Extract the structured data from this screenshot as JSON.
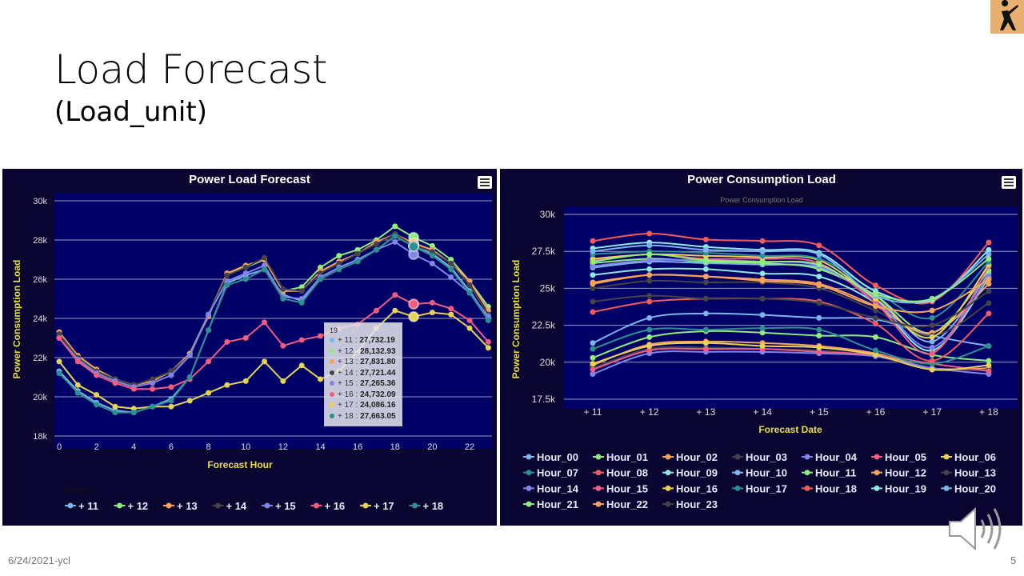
{
  "slide": {
    "title": "Load Forecast",
    "subtitle": "(Load_unit)",
    "footer_date": "6/24/2021-ycl",
    "page_number": "5"
  },
  "colors": {
    "panel_bg": "#0a0530",
    "plot_bg": "#000066",
    "axis_label": "#e8e03a",
    "grid": "#9a9ac0"
  },
  "icons": {
    "menu": "hamburger-menu-icon",
    "speaker": "speaker-audio-icon",
    "logo": "silhouette-logo"
  },
  "chart_data": [
    {
      "type": "line",
      "title": "Power Load Forecast",
      "xlabel": "Forecast Hour",
      "ylabel": "Power Consumption Load",
      "legend_title": "January",
      "legend_position": "bottom",
      "grid": true,
      "x": [
        0,
        1,
        2,
        3,
        4,
        5,
        6,
        7,
        8,
        9,
        10,
        11,
        12,
        13,
        14,
        15,
        16,
        17,
        18,
        19,
        20,
        21,
        22,
        23
      ],
      "x_ticks": [
        "0",
        "2",
        "4",
        "6",
        "8",
        "10",
        "12",
        "14",
        "16",
        "18",
        "20",
        "22"
      ],
      "ylim": [
        18000,
        30000
      ],
      "y_ticks": [
        "18k",
        "20k",
        "22k",
        "24k",
        "26k",
        "28k",
        "30k"
      ],
      "series": [
        {
          "name": "+ 11",
          "color": "#7cb5ec",
          "values": [
            21.3,
            20.3,
            19.7,
            19.3,
            19.2,
            19.5,
            19.9,
            21.0,
            23.4,
            25.8,
            26.2,
            26.5,
            25.2,
            24.9,
            26.1,
            26.6,
            27.0,
            27.5,
            28.2,
            27.732,
            27.3,
            26.6,
            25.4,
            24.0
          ]
        },
        {
          "name": "+ 12",
          "color": "#90ed7d",
          "values": [
            23.2,
            22.0,
            21.3,
            20.9,
            20.6,
            20.8,
            21.3,
            22.2,
            24.2,
            26.3,
            26.6,
            27.0,
            25.4,
            25.6,
            26.6,
            27.2,
            27.5,
            28.0,
            28.7,
            28.133,
            27.7,
            27.0,
            25.9,
            24.6
          ]
        },
        {
          "name": "+ 13",
          "color": "#f7a35c",
          "values": [
            23.3,
            22.1,
            21.4,
            20.9,
            20.6,
            20.8,
            21.3,
            22.2,
            24.1,
            26.3,
            26.7,
            27.0,
            25.4,
            25.4,
            26.4,
            26.9,
            27.3,
            27.9,
            28.3,
            27.832,
            27.5,
            26.8,
            25.9,
            24.4
          ]
        },
        {
          "name": "+ 14",
          "color": "#434348",
          "values": [
            23.2,
            22.0,
            21.3,
            20.9,
            20.6,
            20.9,
            21.3,
            22.1,
            24.2,
            26.2,
            26.6,
            27.1,
            25.5,
            25.4,
            26.3,
            26.8,
            27.3,
            27.8,
            28.3,
            27.721,
            27.4,
            26.8,
            25.7,
            24.2
          ]
        },
        {
          "name": "+ 15",
          "color": "#8085e9",
          "values": [
            23.0,
            21.9,
            21.2,
            20.8,
            20.5,
            20.7,
            21.1,
            22.1,
            24.2,
            25.9,
            26.3,
            26.7,
            25.1,
            25.0,
            26.1,
            26.6,
            27.0,
            27.5,
            27.9,
            27.265,
            26.8,
            26.1,
            25.3,
            24.1
          ]
        },
        {
          "name": "+ 16",
          "color": "#f15c80",
          "values": [
            23.0,
            21.8,
            21.1,
            20.7,
            20.4,
            20.4,
            20.5,
            20.9,
            21.8,
            22.8,
            23.0,
            23.8,
            22.6,
            22.9,
            23.1,
            23.5,
            23.7,
            24.4,
            25.2,
            24.732,
            24.8,
            24.5,
            23.9,
            22.8
          ]
        },
        {
          "name": "+ 17",
          "color": "#e4d354",
          "values": [
            21.8,
            20.6,
            20.1,
            19.5,
            19.4,
            19.5,
            19.5,
            19.8,
            20.2,
            20.6,
            20.8,
            21.8,
            20.8,
            21.6,
            20.9,
            21.3,
            22.3,
            23.5,
            24.4,
            24.086,
            24.3,
            24.2,
            23.5,
            22.5
          ]
        },
        {
          "name": "+ 18",
          "color": "#2b908f",
          "values": [
            21.2,
            20.2,
            19.6,
            19.2,
            19.2,
            19.5,
            19.8,
            21.0,
            23.4,
            25.7,
            26.0,
            26.5,
            25.0,
            24.8,
            26.0,
            26.5,
            26.9,
            27.5,
            28.2,
            27.663,
            27.2,
            26.5,
            25.3,
            23.9
          ]
        }
      ],
      "tooltip": {
        "header": "19",
        "rows": [
          {
            "label": "+ 11",
            "value": "27,732.19",
            "color": "#7cb5ec"
          },
          {
            "label": "+ 12",
            "value": "28,132.93",
            "color": "#90ed7d"
          },
          {
            "label": "+ 13",
            "value": "27,831.80",
            "color": "#f7a35c"
          },
          {
            "label": "+ 14",
            "value": "27,721.44",
            "color": "#434348"
          },
          {
            "label": "+ 15",
            "value": "27,265.36",
            "color": "#8085e9"
          },
          {
            "label": "+ 16",
            "value": "24,732.09",
            "color": "#f15c80"
          },
          {
            "label": "+ 17",
            "value": "24,086.16",
            "color": "#e4d354"
          },
          {
            "label": "+ 18",
            "value": "27,663.05",
            "color": "#2b908f"
          }
        ]
      }
    },
    {
      "type": "line",
      "title": "Power Consumption Load",
      "subtitle": "Power Consumption Load",
      "xlabel": "Forecast Date",
      "ylabel": "Power Consumption Load",
      "legend_position": "bottom",
      "grid": true,
      "categories": [
        "+ 11",
        "+ 12",
        "+ 13",
        "+ 14",
        "+ 15",
        "+ 16",
        "+ 17",
        "+ 18"
      ],
      "ylim": [
        17500,
        30000
      ],
      "y_ticks": [
        "17.5k",
        "20k",
        "22.5k",
        "25k",
        "27.5k",
        "30k"
      ],
      "series": [
        {
          "name": "Hour_00",
          "color": "#7cb5ec",
          "values": [
            21.3,
            23.0,
            23.3,
            23.2,
            23.0,
            22.9,
            21.8,
            21.1
          ]
        },
        {
          "name": "Hour_01",
          "color": "#90ed7d",
          "values": [
            20.3,
            21.7,
            22.1,
            22.0,
            21.8,
            21.7,
            20.5,
            20.1
          ]
        },
        {
          "name": "Hour_02",
          "color": "#f7a35c",
          "values": [
            19.8,
            21.2,
            21.4,
            21.3,
            21.1,
            20.6,
            19.6,
            19.6
          ]
        },
        {
          "name": "Hour_03",
          "color": "#434348",
          "values": [
            19.6,
            20.9,
            21.0,
            20.9,
            20.8,
            20.4,
            19.5,
            19.5
          ]
        },
        {
          "name": "Hour_04",
          "color": "#8085e9",
          "values": [
            19.2,
            20.6,
            20.7,
            20.7,
            20.6,
            20.4,
            19.6,
            19.2
          ]
        },
        {
          "name": "Hour_05",
          "color": "#f15c80",
          "values": [
            19.5,
            20.8,
            20.9,
            20.9,
            20.7,
            20.5,
            19.9,
            19.4
          ]
        },
        {
          "name": "Hour_06",
          "color": "#e4d354",
          "values": [
            19.9,
            21.1,
            21.3,
            21.1,
            21.0,
            20.5,
            19.5,
            19.8
          ]
        },
        {
          "name": "Hour_07",
          "color": "#2b908f",
          "values": [
            20.9,
            22.2,
            22.2,
            22.3,
            22.2,
            20.8,
            19.9,
            21.1
          ]
        },
        {
          "name": "Hour_08",
          "color": "#f45b5b",
          "values": [
            23.4,
            24.1,
            24.3,
            24.3,
            24.1,
            22.6,
            20.1,
            23.3
          ]
        },
        {
          "name": "Hour_09",
          "color": "#91e8e1",
          "values": [
            25.9,
            26.3,
            26.3,
            26.0,
            25.8,
            24.0,
            20.8,
            25.7
          ]
        },
        {
          "name": "Hour_10",
          "color": "#7cb5ec",
          "values": [
            26.4,
            26.8,
            26.7,
            26.6,
            26.4,
            24.5,
            21.4,
            26.0
          ]
        },
        {
          "name": "Hour_11",
          "color": "#90ed7d",
          "values": [
            26.7,
            27.0,
            26.8,
            26.7,
            26.3,
            24.5,
            22.0,
            26.2
          ]
        },
        {
          "name": "Hour_12",
          "color": "#f7a35c",
          "values": [
            25.4,
            25.9,
            25.8,
            25.6,
            25.3,
            23.8,
            22.0,
            25.3
          ]
        },
        {
          "name": "Hour_13",
          "color": "#434348",
          "values": [
            25.0,
            25.5,
            25.4,
            25.4,
            25.0,
            23.5,
            21.8,
            24.0
          ]
        },
        {
          "name": "Hour_14",
          "color": "#8085e9",
          "values": [
            26.5,
            26.9,
            26.9,
            26.8,
            26.5,
            24.2,
            21.0,
            25.8
          ]
        },
        {
          "name": "Hour_15",
          "color": "#f15c80",
          "values": [
            26.9,
            27.3,
            27.0,
            27.0,
            26.7,
            24.0,
            20.6,
            26.5
          ]
        },
        {
          "name": "Hour_16",
          "color": "#e4d354",
          "values": [
            27.0,
            27.3,
            27.2,
            27.1,
            26.9,
            24.3,
            21.7,
            26.6
          ]
        },
        {
          "name": "Hour_17",
          "color": "#2b908f",
          "values": [
            27.3,
            27.5,
            27.4,
            27.2,
            27.0,
            24.8,
            23.0,
            26.8
          ]
        },
        {
          "name": "Hour_18",
          "color": "#f45b5b",
          "values": [
            28.2,
            28.7,
            28.3,
            28.2,
            27.9,
            25.2,
            24.1,
            28.1
          ]
        },
        {
          "name": "Hour_19",
          "color": "#91e8e1",
          "values": [
            27.7,
            28.1,
            27.8,
            27.6,
            27.4,
            24.8,
            24.2,
            27.6
          ]
        },
        {
          "name": "Hour_20",
          "color": "#7cb5ec",
          "values": [
            27.5,
            27.9,
            27.6,
            27.5,
            27.3,
            24.5,
            24.3,
            27.3
          ]
        },
        {
          "name": "Hour_21",
          "color": "#90ed7d",
          "values": [
            26.8,
            27.3,
            26.9,
            26.8,
            26.6,
            24.6,
            24.3,
            27.0
          ]
        },
        {
          "name": "Hour_22",
          "color": "#f7a35c",
          "values": [
            25.3,
            25.9,
            25.8,
            25.5,
            25.2,
            23.8,
            23.5,
            25.6
          ]
        },
        {
          "name": "Hour_23",
          "color": "#434348",
          "values": [
            24.1,
            24.5,
            24.3,
            24.3,
            24.0,
            23.0,
            22.5,
            24.8
          ]
        }
      ]
    }
  ]
}
